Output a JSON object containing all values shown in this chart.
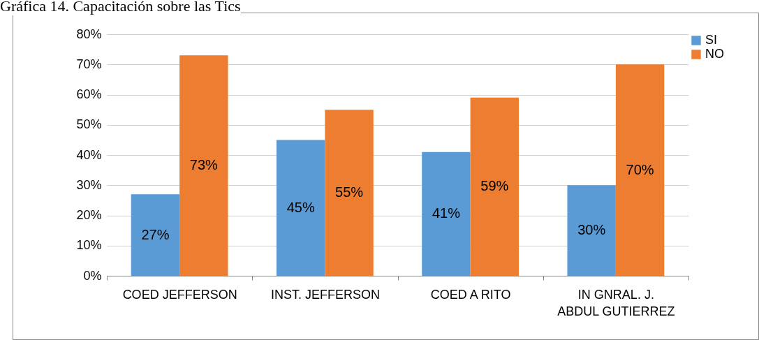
{
  "chart_data": {
    "type": "bar",
    "title": "Gráfica 14. Capacitación sobre las Tics",
    "categories": [
      "COED JEFFERSON",
      "INST. JEFFERSON",
      "COED A   RITO",
      "IN GNRAL. J. ABDUL GUTIERREZ"
    ],
    "series": [
      {
        "name": "SI",
        "color": "#5b9bd5",
        "values": [
          27,
          45,
          41,
          30
        ],
        "value_labels": [
          "27%",
          "45%",
          "41%",
          "30%"
        ]
      },
      {
        "name": "NO",
        "color": "#ed7d31",
        "values": [
          73,
          55,
          59,
          70
        ],
        "value_labels": [
          "73%",
          "55%",
          "59%",
          "70%"
        ]
      }
    ],
    "ylim": [
      0,
      80
    ],
    "yticks": [
      {
        "value": 0,
        "label": "0%"
      },
      {
        "value": 10,
        "label": "10%"
      },
      {
        "value": 20,
        "label": "20%"
      },
      {
        "value": 30,
        "label": "30%"
      },
      {
        "value": 40,
        "label": "40%"
      },
      {
        "value": 50,
        "label": "50%"
      },
      {
        "value": 60,
        "label": "60%"
      },
      {
        "value": 70,
        "label": "70%"
      },
      {
        "value": 80,
        "label": "80%"
      }
    ],
    "grid": "y",
    "legend": "right"
  }
}
